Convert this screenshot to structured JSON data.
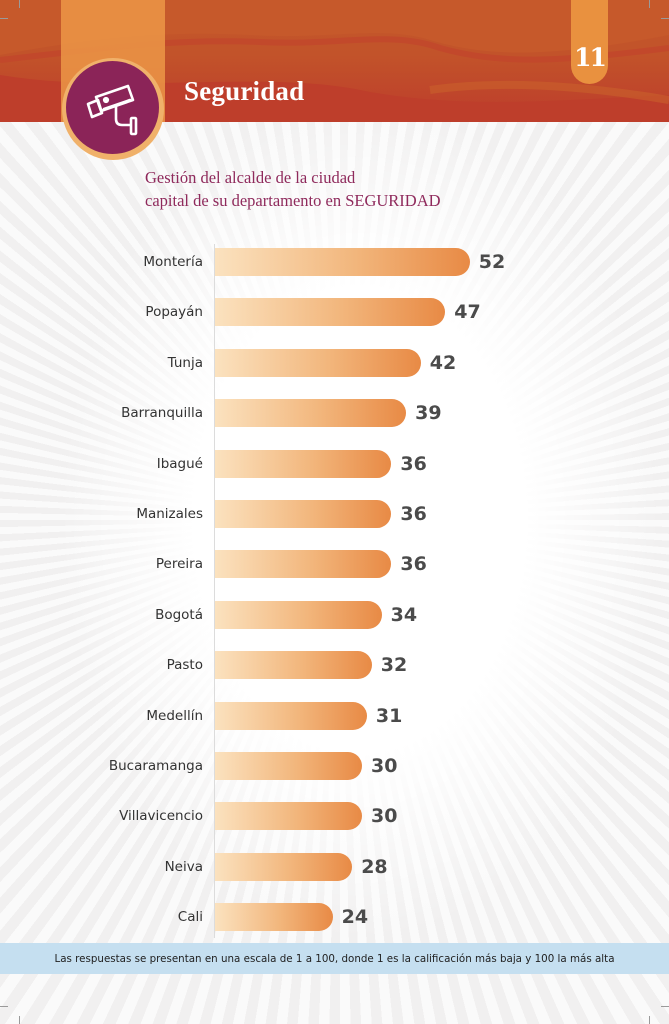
{
  "header": {
    "section_title": "Seguridad",
    "page_number": "11",
    "icon": "security-camera-icon",
    "colors": {
      "header_orange": "#c4582b",
      "header_red": "#bd3c2c",
      "tab_orange": "#e9913f",
      "badge_purple": "#8b2458",
      "badge_ring": "#f0b16a"
    }
  },
  "chart_title_line1": "Gestión del alcalde de la ciudad",
  "chart_title_line2": "capital de su departamento en SEGURIDAD",
  "footnote": "Las respuestas se presentan en una escala de 1 a 100, donde 1 es la calificación más baja y 100 la más alta",
  "chart_data": {
    "type": "bar",
    "orientation": "horizontal",
    "title": "Gestión del alcalde de la ciudad capital de su departamento en SEGURIDAD",
    "xlabel": "",
    "ylabel": "",
    "xlim": [
      0,
      100
    ],
    "grid": false,
    "legend": "none",
    "bar_color_gradient": [
      "#fbe2bf",
      "#e88a45"
    ],
    "label_color": "#4b4b4b",
    "categories": [
      "Montería",
      "Popayán",
      "Tunja",
      "Barranquilla",
      "Ibagué",
      "Manizales",
      "Pereira",
      "Bogotá",
      "Pasto",
      "Medellín",
      "Bucaramanga",
      "Villavicencio",
      "Neiva",
      "Cali"
    ],
    "values": [
      52,
      47,
      42,
      39,
      36,
      36,
      36,
      34,
      32,
      31,
      30,
      30,
      28,
      24
    ],
    "value_labels": [
      "52",
      "47",
      "42",
      "39",
      "36",
      "36",
      "36",
      "34",
      "32",
      "31",
      "30",
      "30",
      "28",
      "24"
    ]
  }
}
